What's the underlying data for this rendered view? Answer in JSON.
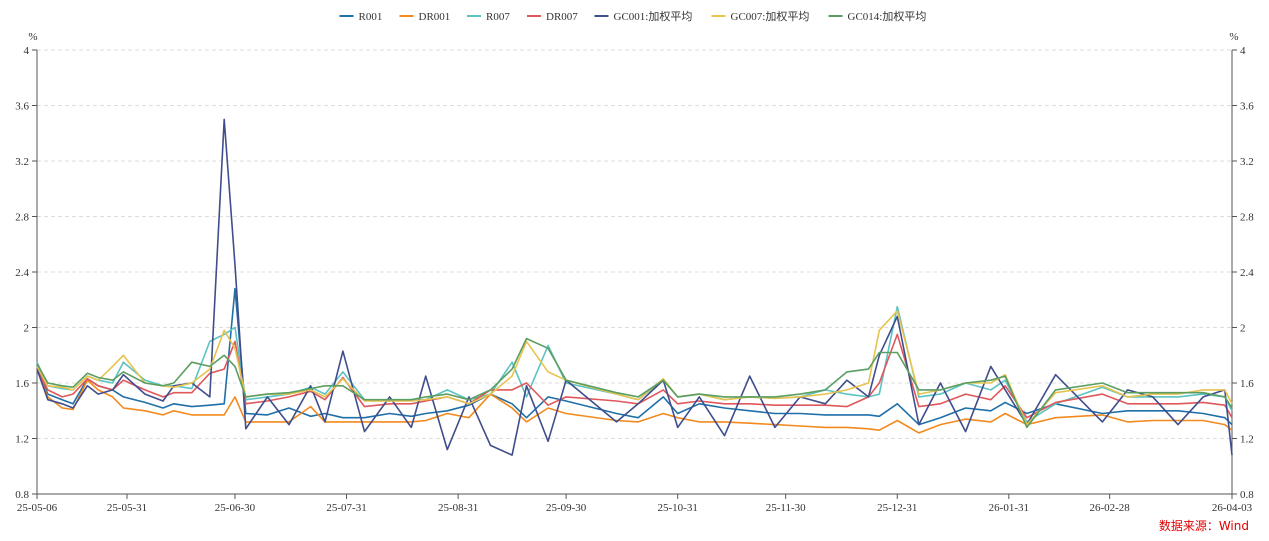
{
  "chart_data": {
    "type": "line",
    "yunit_left": "%",
    "yunit_right": "%",
    "ylim": [
      0.8,
      4
    ],
    "yticks": [
      "0.8",
      "1.2",
      "1.6",
      "2",
      "2.4",
      "2.8",
      "3.2",
      "3.6",
      "4"
    ],
    "xlim": [
      "25-05-06",
      "26-04-03"
    ],
    "xticks": [
      "25-05-06",
      "25-05-31",
      "25-06-30",
      "25-07-31",
      "25-08-31",
      "25-09-30",
      "25-10-31",
      "25-11-30",
      "25-12-31",
      "26-01-31",
      "26-02-28",
      "26-04-03"
    ],
    "grid": "horizontal dashed",
    "legend_position": "top",
    "x": [
      "25-05-06",
      "25-05-09",
      "25-05-13",
      "25-05-16",
      "25-05-20",
      "25-05-23",
      "25-05-27",
      "25-05-30",
      "25-06-05",
      "25-06-10",
      "25-06-13",
      "25-06-18",
      "25-06-23",
      "25-06-27",
      "25-06-30",
      "25-07-03",
      "25-07-09",
      "25-07-15",
      "25-07-21",
      "25-07-25",
      "25-07-30",
      "25-08-05",
      "25-08-12",
      "25-08-18",
      "25-08-22",
      "25-08-28",
      "25-09-03",
      "25-09-09",
      "25-09-15",
      "25-09-19",
      "25-09-25",
      "25-09-30",
      "25-10-14",
      "25-10-20",
      "25-10-27",
      "25-10-31",
      "25-11-06",
      "25-11-13",
      "25-11-20",
      "25-11-27",
      "25-12-04",
      "25-12-11",
      "25-12-17",
      "25-12-23",
      "25-12-26",
      "25-12-31",
      "26-01-06",
      "26-01-12",
      "26-01-19",
      "26-01-26",
      "26-01-30",
      "26-02-05",
      "26-02-13",
      "26-02-26",
      "26-03-05",
      "26-03-12",
      "26-03-19",
      "26-03-26",
      "26-04-01",
      "26-04-03"
    ],
    "series": [
      {
        "name": "R001",
        "color": "#1f6fa8",
        "values": [
          1.72,
          1.52,
          1.48,
          1.45,
          1.63,
          1.58,
          1.55,
          1.5,
          1.46,
          1.42,
          1.45,
          1.43,
          1.44,
          1.45,
          2.28,
          1.38,
          1.37,
          1.42,
          1.36,
          1.38,
          1.35,
          1.35,
          1.38,
          1.36,
          1.38,
          1.4,
          1.44,
          1.52,
          1.45,
          1.35,
          1.5,
          1.47,
          1.38,
          1.35,
          1.5,
          1.38,
          1.45,
          1.42,
          1.4,
          1.38,
          1.38,
          1.37,
          1.37,
          1.37,
          1.36,
          1.45,
          1.3,
          1.35,
          1.42,
          1.4,
          1.46,
          1.38,
          1.45,
          1.38,
          1.4,
          1.4,
          1.4,
          1.38,
          1.35,
          1.3
        ]
      },
      {
        "name": "DR001",
        "color": "#f28a1e",
        "values": [
          1.7,
          1.5,
          1.42,
          1.41,
          1.62,
          1.55,
          1.5,
          1.42,
          1.4,
          1.37,
          1.4,
          1.37,
          1.37,
          1.37,
          1.5,
          1.32,
          1.32,
          1.32,
          1.43,
          1.32,
          1.32,
          1.32,
          1.32,
          1.32,
          1.33,
          1.38,
          1.35,
          1.52,
          1.42,
          1.32,
          1.42,
          1.38,
          1.33,
          1.32,
          1.38,
          1.35,
          1.32,
          1.32,
          1.31,
          1.3,
          1.29,
          1.28,
          1.28,
          1.27,
          1.26,
          1.33,
          1.24,
          1.3,
          1.34,
          1.32,
          1.38,
          1.3,
          1.35,
          1.37,
          1.32,
          1.33,
          1.33,
          1.33,
          1.3,
          1.26
        ]
      },
      {
        "name": "R007",
        "color": "#5bc3c2",
        "values": [
          1.75,
          1.58,
          1.56,
          1.55,
          1.65,
          1.62,
          1.6,
          1.75,
          1.62,
          1.58,
          1.58,
          1.56,
          1.9,
          1.95,
          2.0,
          1.48,
          1.5,
          1.52,
          1.57,
          1.52,
          1.68,
          1.48,
          1.47,
          1.48,
          1.48,
          1.55,
          1.48,
          1.52,
          1.75,
          1.5,
          1.87,
          1.6,
          1.52,
          1.48,
          1.62,
          1.5,
          1.52,
          1.48,
          1.5,
          1.49,
          1.5,
          1.55,
          1.52,
          1.5,
          1.52,
          2.15,
          1.5,
          1.52,
          1.6,
          1.55,
          1.62,
          1.32,
          1.45,
          1.57,
          1.5,
          1.5,
          1.5,
          1.52,
          1.5,
          1.4
        ]
      },
      {
        "name": "DR007",
        "color": "#e0585b",
        "values": [
          1.7,
          1.55,
          1.5,
          1.52,
          1.63,
          1.58,
          1.55,
          1.62,
          1.55,
          1.5,
          1.53,
          1.53,
          1.67,
          1.7,
          1.9,
          1.45,
          1.47,
          1.5,
          1.54,
          1.48,
          1.64,
          1.43,
          1.45,
          1.45,
          1.47,
          1.5,
          1.45,
          1.55,
          1.55,
          1.6,
          1.44,
          1.5,
          1.47,
          1.45,
          1.55,
          1.45,
          1.47,
          1.45,
          1.45,
          1.44,
          1.44,
          1.44,
          1.43,
          1.5,
          1.6,
          1.95,
          1.43,
          1.45,
          1.52,
          1.48,
          1.58,
          1.35,
          1.46,
          1.52,
          1.45,
          1.45,
          1.45,
          1.46,
          1.44,
          1.35
        ]
      },
      {
        "name": "GC001:加权平均",
        "color": "#3f4e8c",
        "values": [
          1.7,
          1.48,
          1.45,
          1.42,
          1.58,
          1.52,
          1.55,
          1.66,
          1.52,
          1.47,
          1.58,
          1.6,
          1.5,
          3.5,
          2.45,
          1.27,
          1.5,
          1.3,
          1.58,
          1.32,
          1.83,
          1.25,
          1.5,
          1.28,
          1.65,
          1.12,
          1.5,
          1.15,
          1.08,
          1.58,
          1.18,
          1.62,
          1.32,
          1.45,
          1.62,
          1.28,
          1.5,
          1.22,
          1.65,
          1.28,
          1.5,
          1.45,
          1.62,
          1.5,
          1.8,
          2.08,
          1.3,
          1.6,
          1.25,
          1.72,
          1.55,
          1.3,
          1.66,
          1.32,
          1.55,
          1.5,
          1.3,
          1.5,
          1.55,
          1.08
        ]
      },
      {
        "name": "GC007:加权平均",
        "color": "#e8c34f",
        "values": [
          1.72,
          1.58,
          1.57,
          1.55,
          1.65,
          1.62,
          1.72,
          1.8,
          1.6,
          1.58,
          1.57,
          1.6,
          1.7,
          1.98,
          1.85,
          1.5,
          1.52,
          1.52,
          1.55,
          1.5,
          1.63,
          1.47,
          1.47,
          1.47,
          1.48,
          1.5,
          1.45,
          1.52,
          1.65,
          1.9,
          1.68,
          1.62,
          1.52,
          1.48,
          1.63,
          1.5,
          1.52,
          1.48,
          1.5,
          1.49,
          1.5,
          1.52,
          1.55,
          1.6,
          1.98,
          2.12,
          1.52,
          1.55,
          1.6,
          1.6,
          1.66,
          1.3,
          1.53,
          1.58,
          1.5,
          1.52,
          1.52,
          1.55,
          1.55,
          1.45
        ]
      },
      {
        "name": "GC014:加权平均",
        "color": "#5a9e62",
        "values": [
          1.74,
          1.6,
          1.58,
          1.57,
          1.67,
          1.64,
          1.62,
          1.68,
          1.6,
          1.58,
          1.6,
          1.75,
          1.72,
          1.8,
          1.72,
          1.5,
          1.52,
          1.53,
          1.56,
          1.58,
          1.58,
          1.48,
          1.48,
          1.48,
          1.5,
          1.52,
          1.48,
          1.55,
          1.7,
          1.92,
          1.85,
          1.62,
          1.53,
          1.5,
          1.62,
          1.5,
          1.52,
          1.5,
          1.5,
          1.5,
          1.52,
          1.55,
          1.68,
          1.7,
          1.82,
          1.82,
          1.55,
          1.55,
          1.6,
          1.62,
          1.65,
          1.28,
          1.55,
          1.6,
          1.53,
          1.53,
          1.53,
          1.53,
          1.5,
          1.42
        ]
      }
    ]
  },
  "source": "数据来源：Wind"
}
